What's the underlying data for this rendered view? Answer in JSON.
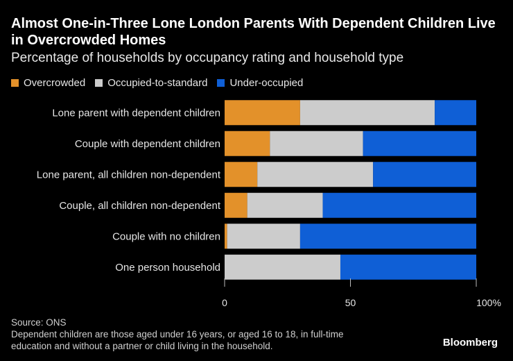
{
  "title": "Almost One-in-Three Lone London Parents With Dependent Children Live in Overcrowded Homes",
  "subtitle": "Percentage of households by occupancy rating and household type",
  "legend": {
    "items": [
      {
        "label": "Overcrowded",
        "color": "#e3912a"
      },
      {
        "label": "Occupied-to-standard",
        "color": "#cccccc"
      },
      {
        "label": "Under-occupied",
        "color": "#0f5fd6"
      }
    ]
  },
  "chart_data": {
    "type": "bar",
    "orientation": "horizontal",
    "stacked": true,
    "categories": [
      "Lone parent with dependent children",
      "Couple with dependent children",
      "Lone parent, all children non-dependent",
      "Couple, all children non-dependent",
      "Couple with no children",
      "One person household"
    ],
    "series": [
      {
        "name": "Overcrowded",
        "color": "#e3912a",
        "values": [
          30,
          18,
          13,
          9,
          1,
          0
        ]
      },
      {
        "name": "Occupied-to-standard",
        "color": "#cccccc",
        "values": [
          53.5,
          37,
          46,
          30,
          29,
          46
        ]
      },
      {
        "name": "Under-occupied",
        "color": "#0f5fd6",
        "values": [
          16.5,
          45,
          41,
          61,
          70,
          54
        ]
      }
    ],
    "xlim": [
      0,
      100
    ],
    "xticks": [
      {
        "value": 0,
        "label": "0"
      },
      {
        "value": 50,
        "label": "50"
      },
      {
        "value": 100,
        "label": "100%"
      }
    ]
  },
  "footer": {
    "source": "Source: ONS",
    "note": "Dependent children are those aged under 16 years, or aged 16 to 18, in full-time education and without a partner or child living in the household."
  },
  "brand": "Bloomberg"
}
